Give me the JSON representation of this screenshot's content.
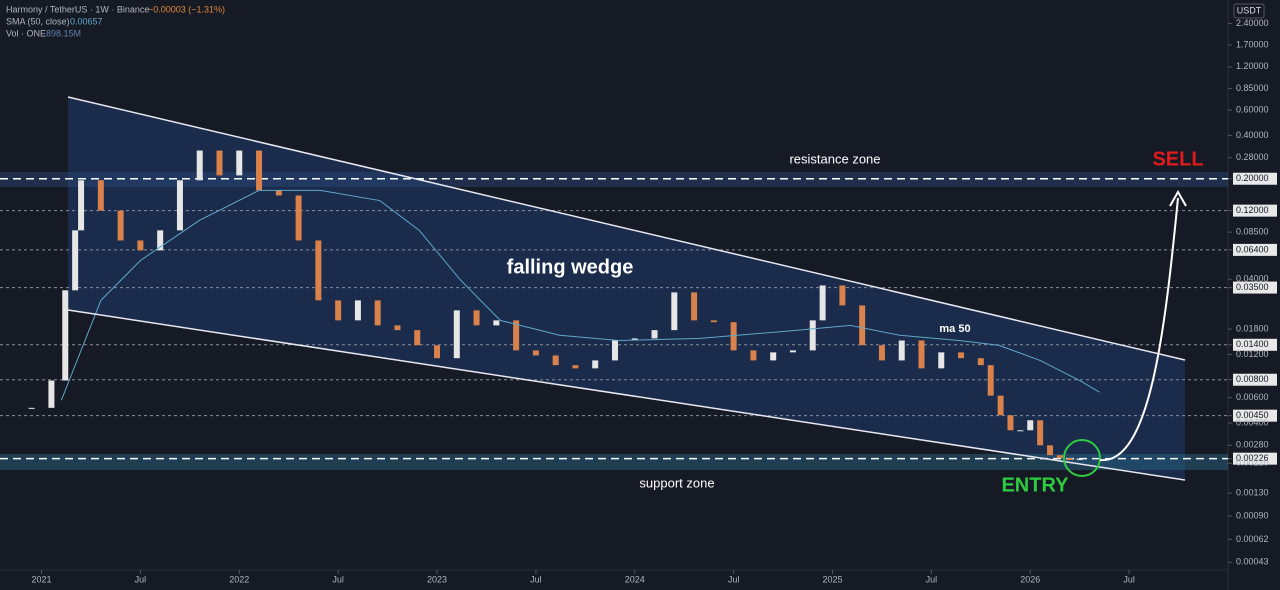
{
  "chart_data": {
    "type": "candlestick",
    "header": {
      "symbol": "Harmony / TetherUS · 1W · Binance",
      "change": "−0.00003 (−1.31%)",
      "sma_label": "SMA (50, close)",
      "sma_value": "0.00657",
      "vol_label": "Vol · ONE",
      "vol_value": "898.15M"
    },
    "currency": "USDT",
    "annotations": {
      "resistance": "resistance zone",
      "sell": "SELL",
      "pattern": "falling wedge",
      "ma": "ma 50",
      "support": "support zone",
      "entry": "ENTRY"
    },
    "log_scale": true,
    "xlim": [
      2020.79,
      2027.0
    ],
    "ylim": [
      0.00038,
      3.5
    ],
    "xticks": [
      {
        "value": 2021,
        "label": "2021"
      },
      {
        "value": 2021.5,
        "label": "Jul"
      },
      {
        "value": 2022,
        "label": "2022"
      },
      {
        "value": 2022.5,
        "label": "Jul"
      },
      {
        "value": 2023,
        "label": "2023"
      },
      {
        "value": 2023.5,
        "label": "Jul"
      },
      {
        "value": 2024,
        "label": "2024"
      },
      {
        "value": 2024.5,
        "label": "Jul"
      },
      {
        "value": 2025,
        "label": "2025"
      },
      {
        "value": 2025.5,
        "label": "Jul"
      },
      {
        "value": 2026,
        "label": "2026"
      },
      {
        "value": 2026.5,
        "label": "Jul"
      }
    ],
    "yticks": [
      {
        "value": 2.4,
        "label": "2.40000"
      },
      {
        "value": 1.7,
        "label": "1.70000"
      },
      {
        "value": 1.2,
        "label": "1.20000"
      },
      {
        "value": 0.85,
        "label": "0.85000"
      },
      {
        "value": 0.6,
        "label": "0.60000"
      },
      {
        "value": 0.4,
        "label": "0.40000"
      },
      {
        "value": 0.28,
        "label": "0.28000"
      },
      {
        "value": 0.2,
        "label": "0.20000"
      },
      {
        "value": 0.12,
        "label": "0.12000"
      },
      {
        "value": 0.085,
        "label": "0.08500"
      },
      {
        "value": 0.064,
        "label": "0.06400"
      },
      {
        "value": 0.04,
        "label": "0.04000"
      },
      {
        "value": 0.035,
        "label": "0.03500"
      },
      {
        "value": 0.018,
        "label": "0.01800"
      },
      {
        "value": 0.014,
        "label": "0.01400"
      },
      {
        "value": 0.012,
        "label": "0.01200"
      },
      {
        "value": 0.008,
        "label": "0.00800"
      },
      {
        "value": 0.006,
        "label": "0.00600"
      },
      {
        "value": 0.0045,
        "label": "0.00450"
      },
      {
        "value": 0.004,
        "label": "0.00400"
      },
      {
        "value": 0.0028,
        "label": "0.00280"
      },
      {
        "value": 0.00226,
        "label": "0.00226"
      },
      {
        "value": 0.0021,
        "label": "0.00210"
      },
      {
        "value": 0.0013,
        "label": "0.00130"
      },
      {
        "value": 0.0009,
        "label": "0.00090"
      },
      {
        "value": 0.00062,
        "label": "0.00062"
      },
      {
        "value": 0.00043,
        "label": "0.00043"
      }
    ],
    "levels": [
      0.2,
      0.12,
      0.064,
      0.035,
      0.014,
      0.008,
      0.0045,
      0.00226
    ],
    "up_color": "#e6e6e6",
    "down_color": "#d9824b",
    "series": [
      {
        "name": "Harmony / TetherUS",
        "x": [
          2020.8,
          2020.95,
          2021.05,
          2021.12,
          2021.17,
          2021.2,
          2021.3,
          2021.4,
          2021.5,
          2021.6,
          2021.7,
          2021.8,
          2021.9,
          2022.0,
          2022.1,
          2022.2,
          2022.3,
          2022.4,
          2022.5,
          2022.6,
          2022.7,
          2022.8,
          2022.9,
          2023.0,
          2023.1,
          2023.2,
          2023.3,
          2023.4,
          2023.5,
          2023.6,
          2023.7,
          2023.8,
          2023.9,
          2024.0,
          2024.1,
          2024.2,
          2024.3,
          2024.4,
          2024.5,
          2024.6,
          2024.7,
          2024.8,
          2024.9,
          2024.95,
          2025.05,
          2025.15,
          2025.25,
          2025.35,
          2025.45,
          2025.55,
          2025.65,
          2025.75,
          2025.8,
          2025.85,
          2025.9,
          2025.95,
          2026.0,
          2026.05,
          2026.1,
          2026.15,
          2026.2,
          2026.25
        ],
        "values": [
          0.0051,
          0.0051,
          0.0079,
          0.0335,
          0.0875,
          0.195,
          0.12,
          0.0744,
          0.0635,
          0.0875,
          0.195,
          0.314,
          0.211,
          0.314,
          0.166,
          0.153,
          0.0744,
          0.0285,
          0.0207,
          0.0285,
          0.0191,
          0.0177,
          0.0139,
          0.0113,
          0.0243,
          0.0191,
          0.0207,
          0.0128,
          0.0118,
          0.0101,
          0.0096,
          0.0109,
          0.015,
          0.0155,
          0.0177,
          0.0324,
          0.0207,
          0.0201,
          0.0128,
          0.0109,
          0.0124,
          0.0128,
          0.0207,
          0.0362,
          0.0263,
          0.0139,
          0.0109,
          0.015,
          0.0096,
          0.0124,
          0.0113,
          0.0101,
          0.0062,
          0.00453,
          0.00356,
          0.00356,
          0.00418,
          0.0028,
          0.00239,
          0.00228,
          0.00221,
          0.00226
        ]
      },
      {
        "name": "SMA (50, close)",
        "color": "#5fa8c8",
        "x": [
          2021.1,
          2021.3,
          2021.5,
          2021.8,
          2022.1,
          2022.41,
          2022.71,
          2022.91,
          2023.12,
          2023.32,
          2023.62,
          2023.92,
          2024.33,
          2024.83,
          2025.09,
          2025.34,
          2025.64,
          2025.84,
          2026.05,
          2026.25,
          2026.35
        ],
        "values": [
          0.00575,
          0.0285,
          0.054,
          0.103,
          0.166,
          0.166,
          0.141,
          0.0875,
          0.0393,
          0.0207,
          0.0163,
          0.015,
          0.0155,
          0.0177,
          0.0191,
          0.0163,
          0.015,
          0.0139,
          0.0109,
          0.0079,
          0.00655
        ]
      }
    ]
  }
}
